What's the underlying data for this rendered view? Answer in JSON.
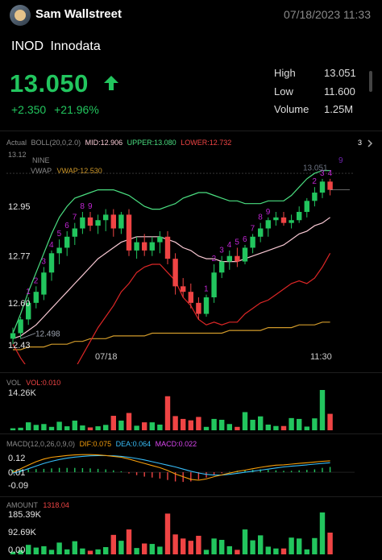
{
  "header": {
    "title": "Sam Wallstreet",
    "datetime": "07/18/2023  11:33"
  },
  "quote": {
    "ticker": "INOD",
    "name": "Innodata",
    "price": "13.050",
    "change": "+2.350",
    "change_pct": "+21.96%",
    "stats": [
      {
        "label": "High",
        "value": "13.051"
      },
      {
        "label": "Low",
        "value": "11.600"
      },
      {
        "label": "Volume",
        "value": "1.25M"
      }
    ]
  },
  "indicators": {
    "actual": "Actual",
    "boll": "BOLL(20,0,2.0)",
    "mid": "MID:12.906",
    "upper": "UPPER:13.080",
    "lower": "LOWER:12.732",
    "expand": "3",
    "nine": "NINE",
    "vwap_label": "VWAP",
    "vwap_value": "VWAP:12.530",
    "top_price": "13.12",
    "low_marker": "12.498",
    "high_marker": "13.051",
    "high_marker_num": "9"
  },
  "colors": {
    "up": "#22c55e",
    "down": "#ef4444",
    "boll_upper": "#4ade80",
    "boll_mid": "#f9c9d4",
    "boll_lower": "#dc2626",
    "vwap": "#d19a2a",
    "nine": "#c026d3",
    "dif": "#f59e0b",
    "dea": "#38bdf8",
    "macd_label": "#d946ef"
  },
  "chart_data": [
    {
      "type": "candlestick",
      "title": "INOD",
      "y_ticks": [
        "12.95",
        "12.77",
        "12.60",
        "12.43"
      ],
      "x_ticks": [
        "07/18",
        "11:30"
      ],
      "ylim": [
        12.43,
        13.12
      ],
      "candles": [
        {
          "o": 12.47,
          "h": 12.51,
          "l": 12.45,
          "c": 12.49
        },
        {
          "o": 12.49,
          "h": 12.55,
          "l": 12.47,
          "c": 12.54
        },
        {
          "o": 12.54,
          "h": 12.62,
          "l": 12.52,
          "c": 12.6
        },
        {
          "o": 12.6,
          "h": 12.66,
          "l": 12.58,
          "c": 12.64
        },
        {
          "o": 12.63,
          "h": 12.73,
          "l": 12.61,
          "c": 12.71
        },
        {
          "o": 12.71,
          "h": 12.79,
          "l": 12.68,
          "c": 12.78
        },
        {
          "o": 12.78,
          "h": 12.83,
          "l": 12.74,
          "c": 12.8
        },
        {
          "o": 12.8,
          "h": 12.86,
          "l": 12.77,
          "c": 12.84
        },
        {
          "o": 12.84,
          "h": 12.89,
          "l": 12.81,
          "c": 12.87
        },
        {
          "o": 12.87,
          "h": 12.93,
          "l": 12.85,
          "c": 12.91
        },
        {
          "o": 12.91,
          "h": 12.93,
          "l": 12.86,
          "c": 12.88
        },
        {
          "o": 12.88,
          "h": 12.92,
          "l": 12.85,
          "c": 12.9
        },
        {
          "o": 12.9,
          "h": 12.94,
          "l": 12.86,
          "c": 12.92
        },
        {
          "o": 12.92,
          "h": 12.94,
          "l": 12.84,
          "c": 12.87
        },
        {
          "o": 12.87,
          "h": 12.93,
          "l": 12.85,
          "c": 12.92
        },
        {
          "o": 12.92,
          "h": 12.94,
          "l": 12.77,
          "c": 12.79
        },
        {
          "o": 12.79,
          "h": 12.84,
          "l": 12.76,
          "c": 12.82
        },
        {
          "o": 12.82,
          "h": 12.85,
          "l": 12.77,
          "c": 12.79
        },
        {
          "o": 12.79,
          "h": 12.84,
          "l": 12.77,
          "c": 12.82
        },
        {
          "o": 12.82,
          "h": 12.86,
          "l": 12.78,
          "c": 12.84
        },
        {
          "o": 12.84,
          "h": 12.86,
          "l": 12.74,
          "c": 12.76
        },
        {
          "o": 12.76,
          "h": 12.78,
          "l": 12.63,
          "c": 12.66
        },
        {
          "o": 12.66,
          "h": 12.69,
          "l": 12.62,
          "c": 12.64
        },
        {
          "o": 12.64,
          "h": 12.67,
          "l": 12.58,
          "c": 12.6
        },
        {
          "o": 12.6,
          "h": 12.62,
          "l": 12.54,
          "c": 12.56
        },
        {
          "o": 12.56,
          "h": 12.63,
          "l": 12.55,
          "c": 12.62
        },
        {
          "o": 12.62,
          "h": 12.74,
          "l": 12.6,
          "c": 12.71
        },
        {
          "o": 12.71,
          "h": 12.77,
          "l": 12.69,
          "c": 12.75
        },
        {
          "o": 12.75,
          "h": 12.79,
          "l": 12.72,
          "c": 12.77
        },
        {
          "o": 12.77,
          "h": 12.8,
          "l": 12.73,
          "c": 12.75
        },
        {
          "o": 12.75,
          "h": 12.81,
          "l": 12.74,
          "c": 12.8
        },
        {
          "o": 12.8,
          "h": 12.85,
          "l": 12.78,
          "c": 12.84
        },
        {
          "o": 12.84,
          "h": 12.89,
          "l": 12.82,
          "c": 12.87
        },
        {
          "o": 12.87,
          "h": 12.91,
          "l": 12.84,
          "c": 12.9
        },
        {
          "o": 12.9,
          "h": 12.93,
          "l": 12.88,
          "c": 12.91
        },
        {
          "o": 12.91,
          "h": 12.93,
          "l": 12.88,
          "c": 12.89
        },
        {
          "o": 12.89,
          "h": 12.92,
          "l": 12.87,
          "c": 12.9
        },
        {
          "o": 12.9,
          "h": 12.95,
          "l": 12.89,
          "c": 12.93
        },
        {
          "o": 12.93,
          "h": 12.98,
          "l": 12.91,
          "c": 12.97
        },
        {
          "o": 12.97,
          "h": 13.02,
          "l": 12.95,
          "c": 13.0
        },
        {
          "o": 13.0,
          "h": 13.05,
          "l": 12.98,
          "c": 13.04
        },
        {
          "o": 13.04,
          "h": 13.05,
          "l": 12.99,
          "c": 13.01
        }
      ],
      "nine_labels": [
        {
          "i": 2,
          "t": "1"
        },
        {
          "i": 3,
          "t": "2"
        },
        {
          "i": 4,
          "t": "3"
        },
        {
          "i": 5,
          "t": "4"
        },
        {
          "i": 6,
          "t": "5"
        },
        {
          "i": 7,
          "t": "6"
        },
        {
          "i": 8,
          "t": "7"
        },
        {
          "i": 9,
          "t": "8"
        },
        {
          "i": 10,
          "t": "9"
        },
        {
          "i": 25,
          "t": "1"
        },
        {
          "i": 26,
          "t": "2"
        },
        {
          "i": 27,
          "t": "3"
        },
        {
          "i": 28,
          "t": "4"
        },
        {
          "i": 29,
          "t": "5"
        },
        {
          "i": 30,
          "t": "6"
        },
        {
          "i": 31,
          "t": "7"
        },
        {
          "i": 32,
          "t": "8"
        },
        {
          "i": 33,
          "t": "9"
        },
        {
          "i": 39,
          "t": "2"
        },
        {
          "i": 40,
          "t": "3"
        },
        {
          "i": 41,
          "t": "4"
        }
      ],
      "boll_upper": [
        12.49,
        12.56,
        12.64,
        12.71,
        12.78,
        12.85,
        12.91,
        12.95,
        12.98,
        12.99,
        13.0,
        13.01,
        13.01,
        13.01,
        13.0,
        12.99,
        12.97,
        12.95,
        12.94,
        12.94,
        12.95,
        12.96,
        12.98,
        12.99,
        13.0,
        13.0,
        12.99,
        12.98,
        12.97,
        12.97,
        12.96,
        12.96,
        12.96,
        12.97,
        12.97,
        12.97,
        12.99,
        13.02,
        13.05,
        13.07,
        13.08,
        13.08
      ],
      "boll_mid": [
        12.47,
        12.48,
        12.5,
        12.52,
        12.55,
        12.58,
        12.61,
        12.64,
        12.67,
        12.7,
        12.73,
        12.76,
        12.78,
        12.8,
        12.82,
        12.83,
        12.84,
        12.84,
        12.84,
        12.84,
        12.83,
        12.82,
        12.8,
        12.79,
        12.77,
        12.76,
        12.76,
        12.75,
        12.75,
        12.75,
        12.76,
        12.77,
        12.78,
        12.79,
        12.8,
        12.81,
        12.83,
        12.85,
        12.86,
        12.88,
        12.89,
        12.91
      ],
      "boll_lower": [
        12.45,
        12.4,
        12.36,
        12.33,
        12.32,
        12.31,
        12.31,
        12.33,
        12.36,
        12.41,
        12.46,
        12.51,
        12.55,
        12.59,
        12.64,
        12.67,
        12.71,
        12.73,
        12.74,
        12.74,
        12.71,
        12.68,
        12.62,
        12.59,
        12.54,
        12.52,
        12.53,
        12.52,
        12.53,
        12.53,
        12.56,
        12.58,
        12.6,
        12.61,
        12.63,
        12.65,
        12.67,
        12.68,
        12.67,
        12.69,
        12.73,
        12.78
      ],
      "vwap": [
        12.43,
        12.43,
        12.44,
        12.44,
        12.44,
        12.45,
        12.45,
        12.45,
        12.46,
        12.46,
        12.47,
        12.47,
        12.47,
        12.48,
        12.48,
        12.48,
        12.48,
        12.48,
        12.49,
        12.49,
        12.49,
        12.49,
        12.49,
        12.49,
        12.49,
        12.49,
        12.49,
        12.49,
        12.5,
        12.5,
        12.5,
        12.5,
        12.5,
        12.51,
        12.51,
        12.51,
        12.51,
        12.52,
        12.52,
        12.52,
        12.53,
        12.53
      ]
    },
    {
      "type": "bar",
      "title": "VOL",
      "label": "VOL:0.010",
      "ymax_label": "14.26K",
      "values": [
        0.7,
        0.9,
        2.8,
        1.9,
        2.2,
        1.2,
        3.0,
        1.4,
        3.4,
        1.7,
        1.0,
        1.4,
        1.9,
        5.1,
        3.4,
        6.1,
        1.6,
        2.8,
        2.8,
        2.0,
        12.0,
        5.0,
        4.0,
        3.5,
        4.7,
        1.2,
        4.0,
        3.7,
        2.2,
        1.2,
        6.4,
        3.7,
        4.9,
        2.0,
        1.5,
        1.5,
        4.3,
        4.0,
        1.3,
        4.2,
        14.2,
        5.8
      ]
    },
    {
      "type": "bar",
      "title": "MACD",
      "label": "MACD(12,0,26,0,9,0)",
      "dif_label": "DIF:0.075",
      "dea_label": "DEA:0.064",
      "macd_label": "MACD:0.022",
      "y_ticks": [
        "0.12",
        "0.01",
        "-0.09"
      ],
      "macd": [
        0.01,
        0.011,
        0.012,
        0.013,
        0.014,
        0.016,
        0.018,
        0.018,
        0.018,
        0.017,
        0.016,
        0.014,
        0.012,
        0.008,
        0.004,
        -0.005,
        -0.012,
        -0.018,
        -0.022,
        -0.026,
        -0.032,
        -0.038,
        -0.04,
        -0.038,
        -0.03,
        -0.022,
        -0.012,
        -0.004,
        0.002,
        0.006,
        0.008,
        0.01,
        0.012,
        0.01,
        0.008,
        0.006,
        0.006,
        0.008,
        0.01,
        0.012,
        0.018,
        0.022
      ],
      "dif": [
        0.01,
        0.03,
        0.05,
        0.07,
        0.085,
        0.095,
        0.1,
        0.105,
        0.108,
        0.11,
        0.11,
        0.108,
        0.105,
        0.1,
        0.095,
        0.085,
        0.072,
        0.06,
        0.048,
        0.036,
        0.02,
        0.0,
        -0.015,
        -0.03,
        -0.035,
        -0.028,
        -0.015,
        -0.005,
        0.005,
        0.015,
        0.022,
        0.03,
        0.038,
        0.044,
        0.05,
        0.052,
        0.056,
        0.06,
        0.064,
        0.068,
        0.072,
        0.075
      ],
      "dea": [
        0.005,
        0.015,
        0.03,
        0.045,
        0.06,
        0.072,
        0.082,
        0.09,
        0.096,
        0.1,
        0.103,
        0.104,
        0.104,
        0.103,
        0.1,
        0.095,
        0.088,
        0.08,
        0.07,
        0.06,
        0.05,
        0.04,
        0.028,
        0.016,
        0.006,
        -0.002,
        -0.006,
        -0.006,
        -0.002,
        0.004,
        0.01,
        0.016,
        0.022,
        0.028,
        0.034,
        0.04,
        0.044,
        0.048,
        0.052,
        0.056,
        0.06,
        0.064
      ]
    },
    {
      "type": "bar",
      "title": "AMOUNT",
      "label": "1318.04",
      "y_ticks": [
        "185.39K",
        "92.69K",
        "0.00"
      ],
      "values": [
        12,
        18,
        42,
        30,
        36,
        20,
        52,
        22,
        58,
        26,
        16,
        22,
        32,
        86,
        60,
        110,
        28,
        48,
        46,
        34,
        180,
        88,
        70,
        60,
        82,
        20,
        70,
        64,
        36,
        20,
        110,
        62,
        84,
        34,
        26,
        26,
        74,
        70,
        22,
        72,
        185,
        96
      ]
    }
  ]
}
